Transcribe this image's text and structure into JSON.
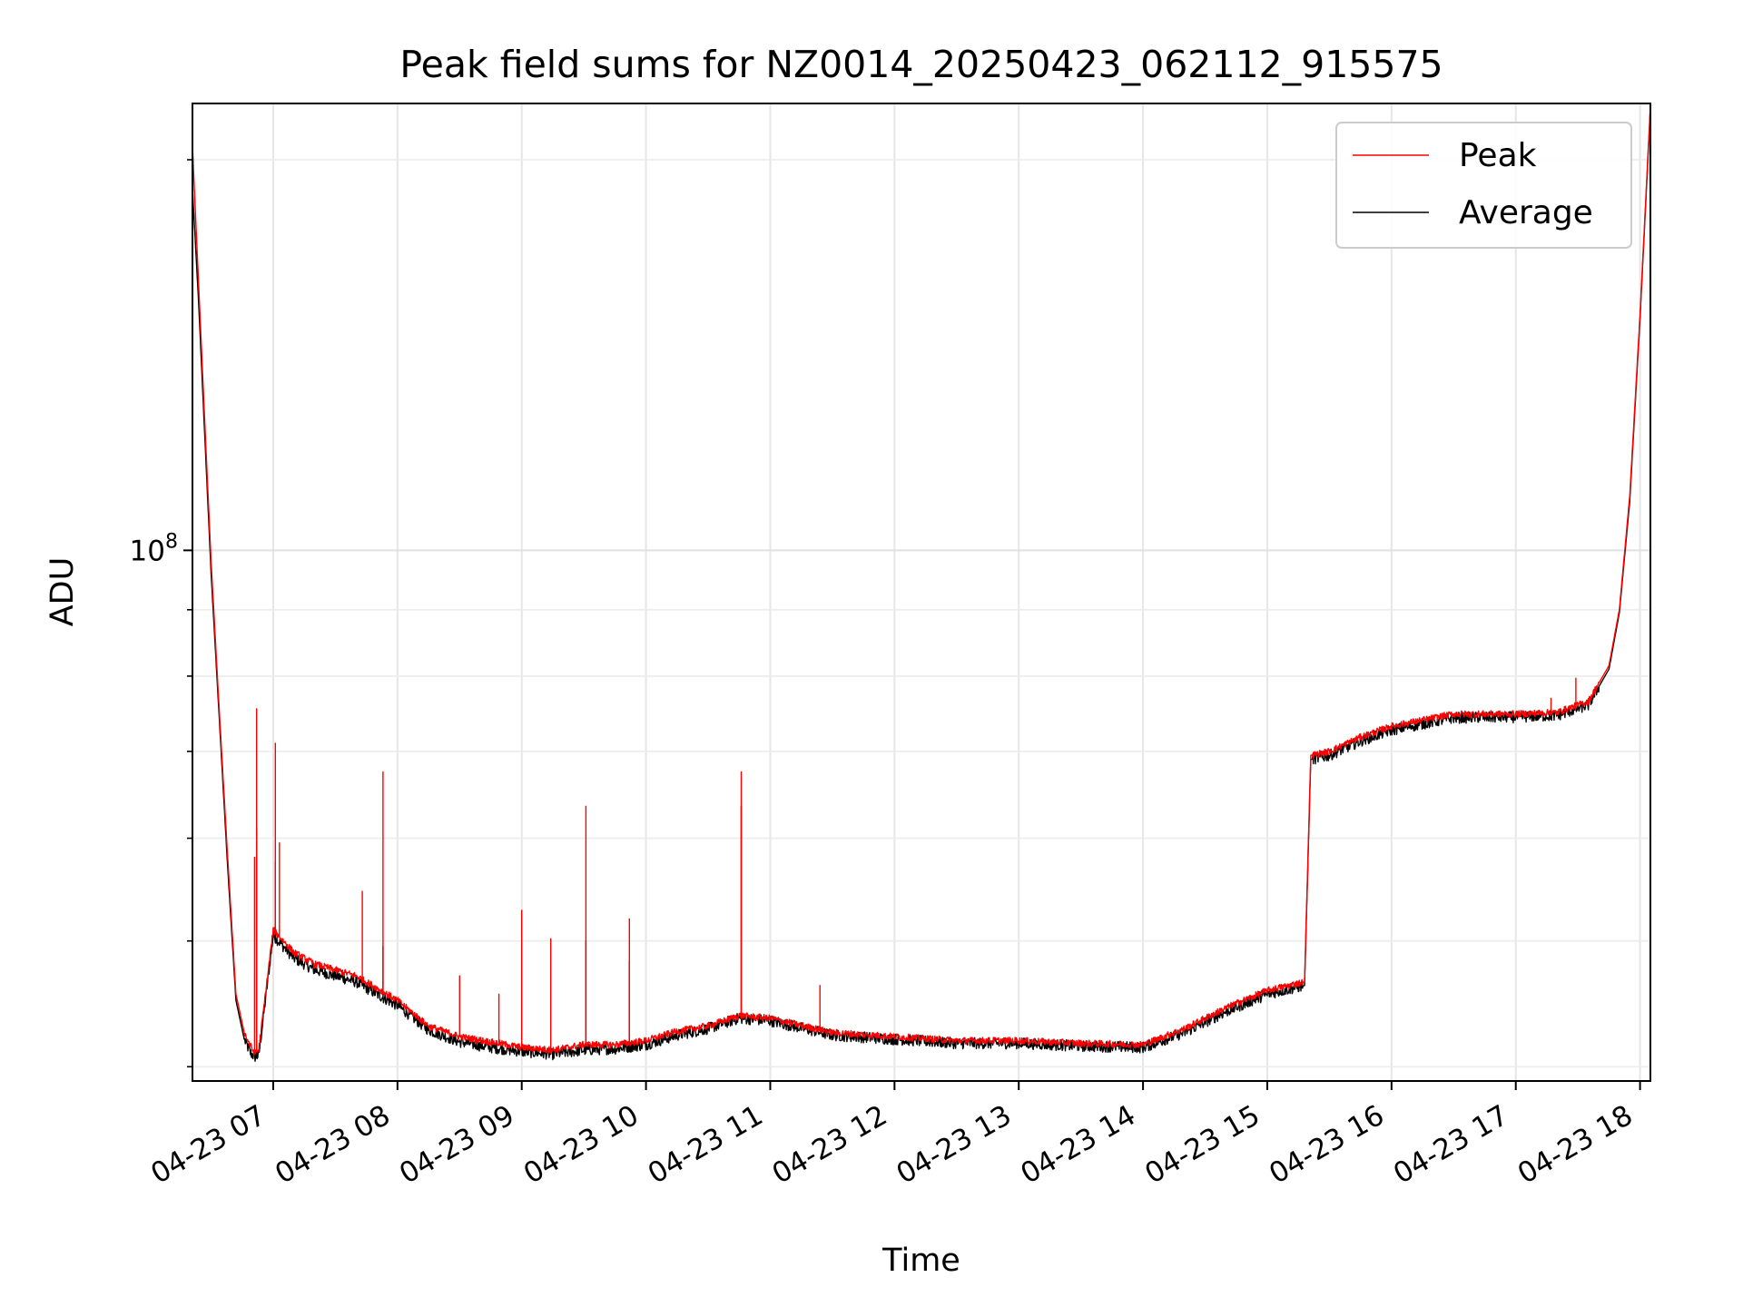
{
  "chart_data": {
    "type": "line",
    "title": "Peak field sums for NZ0014_20250423_062112_915575",
    "xlabel": "Time",
    "ylabel": "ADU",
    "y_scale": "log",
    "ylim": [
      39000000,
      221000000
    ],
    "xlim": [
      "04-23 06:21",
      "04-23 18:05"
    ],
    "x_ticks": [
      "04-23 07",
      "04-23 08",
      "04-23 09",
      "04-23 10",
      "04-23 11",
      "04-23 12",
      "04-23 13",
      "04-23 14",
      "04-23 15",
      "04-23 16",
      "04-23 17",
      "04-23 18"
    ],
    "y_ticks": [
      {
        "label": "10",
        "exponent": "8",
        "value": 100000000
      }
    ],
    "grid": true,
    "legend_position": "upper right",
    "series": [
      {
        "name": "Peak",
        "color": "#ff0000",
        "x": [
          "04-23 06:21",
          "04-23 06:24",
          "04-23 06:27",
          "04-23 06:30",
          "04-23 06:34",
          "04-23 06:38",
          "04-23 06:42",
          "04-23 06:46",
          "04-23 06:49",
          "04-23 06:51",
          "04-23 06:53",
          "04-23 07:00",
          "04-23 07:10",
          "04-23 07:20",
          "04-23 07:30",
          "04-23 07:40",
          "04-23 07:50",
          "04-23 08:00",
          "04-23 08:15",
          "04-23 08:30",
          "04-23 08:45",
          "04-23 09:00",
          "04-23 09:15",
          "04-23 09:30",
          "04-23 09:45",
          "04-23 10:00",
          "04-23 10:15",
          "04-23 10:30",
          "04-23 10:45",
          "04-23 11:00",
          "04-23 11:30",
          "04-23 12:00",
          "04-23 12:30",
          "04-23 13:00",
          "04-23 13:30",
          "04-23 14:00",
          "04-23 14:20",
          "04-23 14:40",
          "04-23 15:00",
          "04-23 15:18",
          "04-23 15:21",
          "04-23 15:30",
          "04-23 15:45",
          "04-23 16:00",
          "04-23 16:30",
          "04-23 17:00",
          "04-23 17:20",
          "04-23 17:35",
          "04-23 17:45",
          "04-23 17:50",
          "04-23 17:55",
          "04-23 18:00",
          "04-23 18:05"
        ],
        "y": [
          205000000,
          160000000,
          125000000,
          98000000,
          75000000,
          58000000,
          45500000,
          42500000,
          41500000,
          41000000,
          41200000,
          51000000,
          49000000,
          48000000,
          47500000,
          47000000,
          46000000,
          45000000,
          43000000,
          42200000,
          41800000,
          41400000,
          41200000,
          41600000,
          41600000,
          41900000,
          42600000,
          43000000,
          43800000,
          43600000,
          42500000,
          42200000,
          41900000,
          41900000,
          41700000,
          41600000,
          42800000,
          44400000,
          45800000,
          46500000,
          69500000,
          70000000,
          71800000,
          73200000,
          74800000,
          74800000,
          75000000,
          76500000,
          81500000,
          90000000,
          110000000,
          152000000,
          220000000
        ],
        "spikes": [
          {
            "x": "04-23 06:51",
            "y": 58000000
          },
          {
            "x": "04-23 06:52",
            "y": 75500000
          },
          {
            "x": "04-23 07:01",
            "y": 71000000
          },
          {
            "x": "04-23 07:03",
            "y": 59500000
          },
          {
            "x": "04-23 07:43",
            "y": 54600000
          },
          {
            "x": "04-23 07:53",
            "y": 67500000
          },
          {
            "x": "04-23 08:30",
            "y": 47000000
          },
          {
            "x": "04-23 08:49",
            "y": 45500000
          },
          {
            "x": "04-23 09:00",
            "y": 52800000
          },
          {
            "x": "04-23 09:14",
            "y": 50200000
          },
          {
            "x": "04-23 09:31",
            "y": 63500000
          },
          {
            "x": "04-23 09:52",
            "y": 52000000
          },
          {
            "x": "04-23 10:46",
            "y": 67500000
          },
          {
            "x": "04-23 11:24",
            "y": 46200000
          },
          {
            "x": "04-23 17:17",
            "y": 76900000
          },
          {
            "x": "04-23 17:29",
            "y": 79700000
          }
        ]
      },
      {
        "name": "Average",
        "color": "#000000",
        "x": [
          "04-23 06:21",
          "04-23 06:24",
          "04-23 06:27",
          "04-23 06:30",
          "04-23 06:34",
          "04-23 06:38",
          "04-23 06:42",
          "04-23 06:46",
          "04-23 06:49",
          "04-23 06:51",
          "04-23 06:53",
          "04-23 07:00",
          "04-23 07:10",
          "04-23 07:20",
          "04-23 07:30",
          "04-23 07:40",
          "04-23 07:50",
          "04-23 08:00",
          "04-23 08:15",
          "04-23 08:30",
          "04-23 08:45",
          "04-23 09:00",
          "04-23 09:15",
          "04-23 09:30",
          "04-23 09:45",
          "04-23 10:00",
          "04-23 10:15",
          "04-23 10:30",
          "04-23 10:45",
          "04-23 11:00",
          "04-23 11:30",
          "04-23 12:00",
          "04-23 12:30",
          "04-23 13:00",
          "04-23 13:30",
          "04-23 14:00",
          "04-23 14:20",
          "04-23 14:40",
          "04-23 15:00",
          "04-23 15:18",
          "04-23 15:21",
          "04-23 15:30",
          "04-23 15:45",
          "04-23 16:00",
          "04-23 16:30",
          "04-23 17:00",
          "04-23 17:20",
          "04-23 17:35",
          "04-23 17:45",
          "04-23 17:50",
          "04-23 17:55",
          "04-23 18:00",
          "04-23 18:05"
        ],
        "y": [
          190000000,
          155000000,
          122000000,
          96000000,
          74000000,
          57000000,
          45000000,
          42000000,
          41000000,
          40700000,
          40800000,
          50500000,
          48500000,
          47500000,
          47000000,
          46500000,
          45500000,
          44600000,
          42700000,
          41800000,
          41400000,
          41100000,
          40900000,
          41200000,
          41300000,
          41600000,
          42300000,
          42800000,
          43600000,
          43400000,
          42300000,
          42000000,
          41700000,
          41700000,
          41500000,
          41400000,
          42500000,
          44100000,
          45500000,
          46200000,
          69000000,
          69500000,
          71300000,
          72700000,
          74300000,
          74400000,
          74600000,
          76000000,
          81000000,
          89500000,
          109000000,
          151000000,
          219000000
        ],
        "spikes": [
          {
            "x": "04-23 06:52",
            "y": 61000000
          },
          {
            "x": "04-23 07:01",
            "y": 57500000
          },
          {
            "x": "04-23 07:53",
            "y": 49500000
          },
          {
            "x": "04-23 09:31",
            "y": 50000000
          },
          {
            "x": "04-23 09:52",
            "y": 48200000
          },
          {
            "x": "04-23 10:46",
            "y": 63500000
          }
        ]
      }
    ]
  }
}
